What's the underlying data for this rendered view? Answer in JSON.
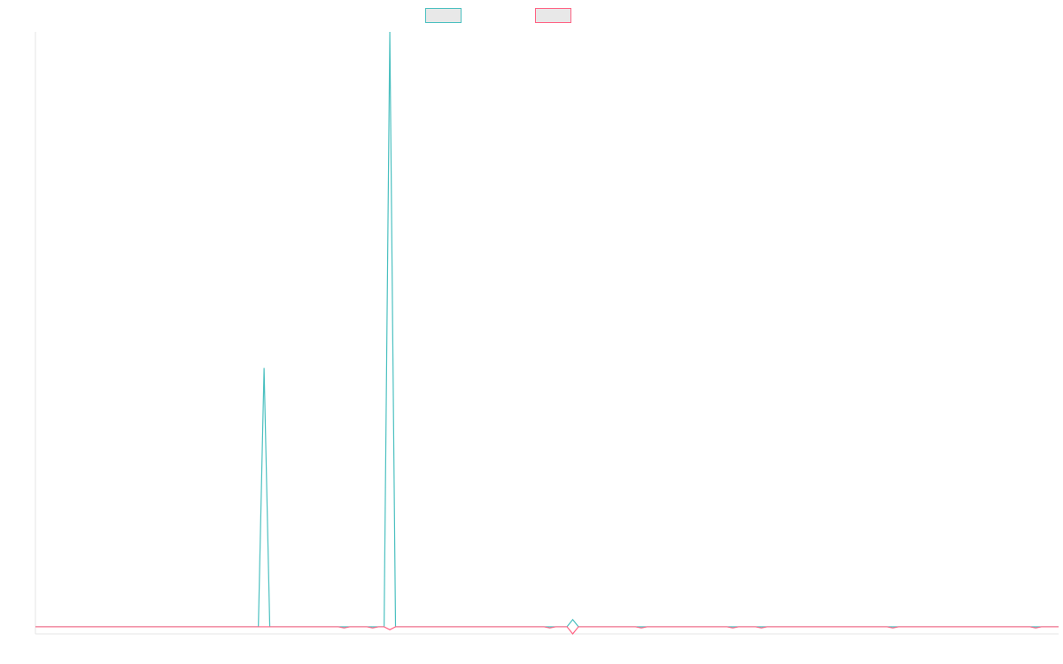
{
  "chart_data": {
    "type": "line",
    "x": [
      0,
      39,
      40,
      41,
      53,
      54,
      55,
      58,
      59,
      60,
      61,
      62,
      63,
      89,
      90,
      91,
      93,
      94,
      95,
      105,
      106,
      107,
      121,
      122,
      123,
      126,
      127,
      128,
      149,
      150,
      151,
      174,
      175,
      176,
      179
    ],
    "series": [
      {
        "color": "#4bc0c0",
        "values": [
          0,
          0,
          43.5,
          0,
          0,
          0,
          0,
          0,
          0,
          0,
          0,
          100,
          0,
          0,
          0,
          0,
          0,
          1.2,
          0,
          0,
          0,
          0,
          0,
          0,
          0,
          0,
          0,
          0,
          0,
          0,
          0,
          0,
          0,
          0,
          0
        ]
      },
      {
        "color": "#ff6384",
        "values": [
          0,
          0,
          0,
          0,
          0,
          -0.2,
          0,
          0,
          -0.2,
          0,
          0,
          -0.5,
          0,
          0,
          -0.2,
          0,
          0,
          -1.2,
          0,
          0,
          -0.2,
          0,
          0,
          -0.2,
          0,
          0,
          -0.2,
          0,
          0,
          -0.2,
          0,
          0,
          -0.2,
          0,
          0
        ]
      }
    ],
    "xlim": [
      0,
      179
    ],
    "ylim": [
      -1.2,
      100
    ]
  }
}
